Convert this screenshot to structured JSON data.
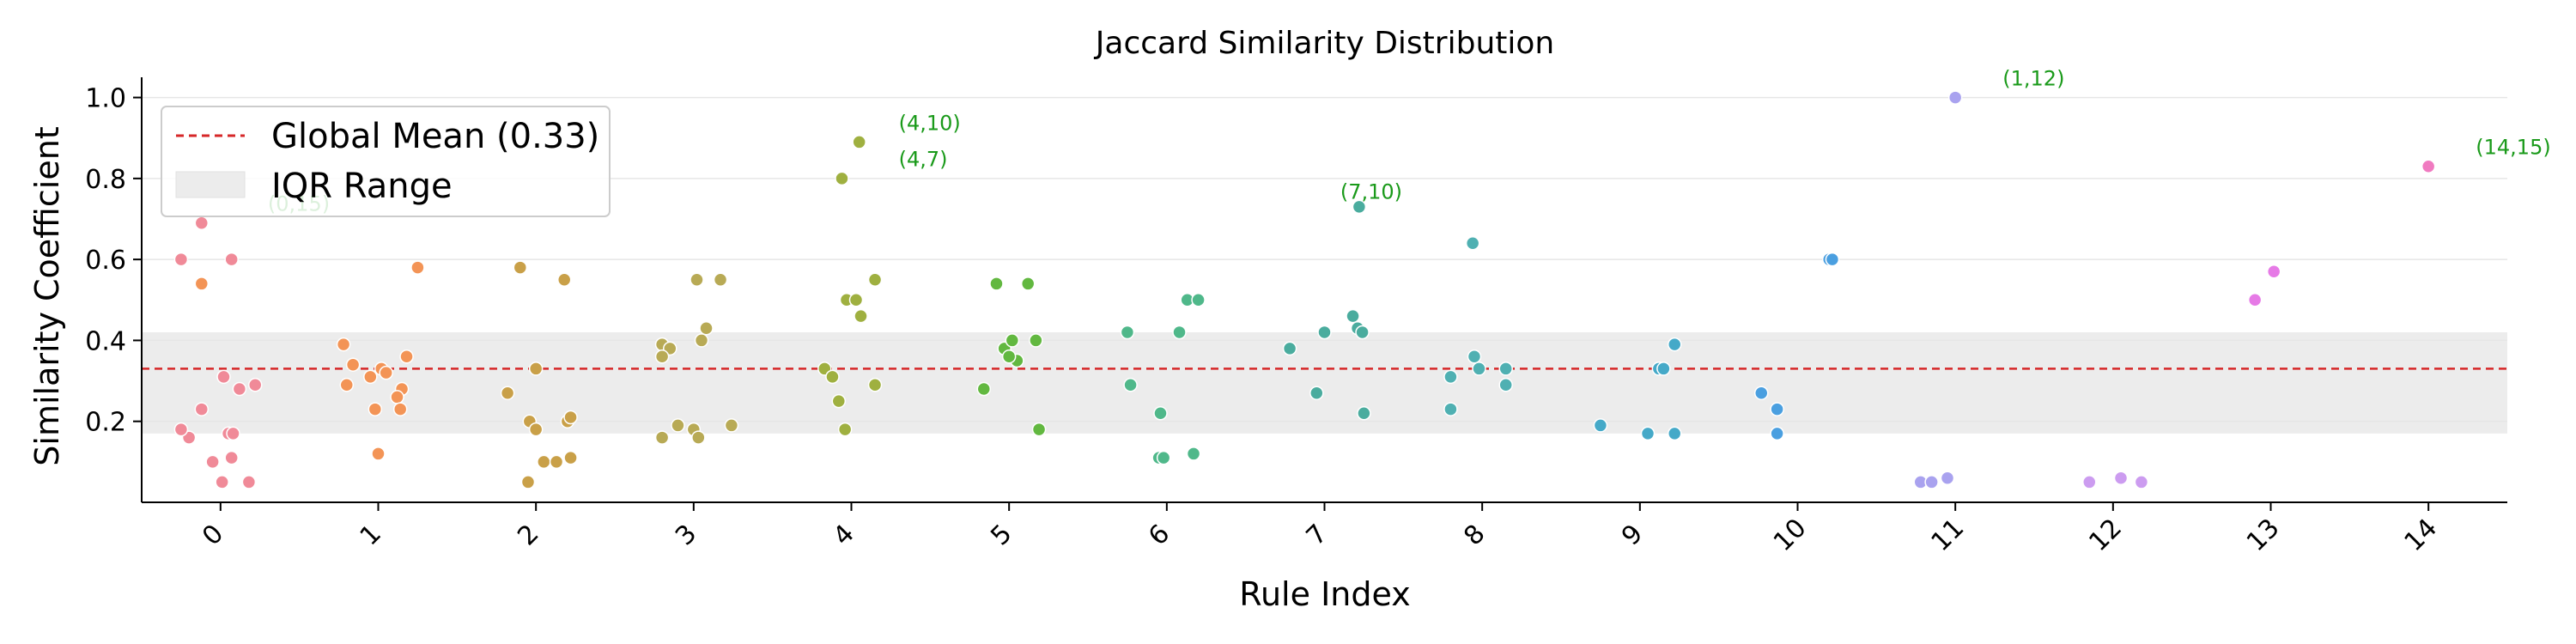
{
  "chart_data": {
    "type": "scatter",
    "title": "Jaccard Similarity Distribution",
    "xlabel": "Rule Index",
    "ylabel": "Similarity Coefficient",
    "xlim": [
      -0.5,
      14.5
    ],
    "ylim": [
      0.0,
      1.05
    ],
    "x_ticks": [
      "0",
      "1",
      "2",
      "3",
      "4",
      "5",
      "6",
      "7",
      "8",
      "9",
      "10",
      "11",
      "12",
      "13",
      "14"
    ],
    "y_ticks": [
      "0.2",
      "0.4",
      "0.6",
      "0.8",
      "1.0"
    ],
    "grid": "horizontal",
    "mean_line": {
      "value": 0.33,
      "color": "#d62728"
    },
    "iqr_band": {
      "lower": 0.17,
      "upper": 0.42,
      "color": "#ececec"
    },
    "legend": {
      "placement": "top-left",
      "entries": [
        {
          "label": "Global Mean (0.33)",
          "style": "dashed-line",
          "color": "#d62728"
        },
        {
          "label": "IQR Range",
          "style": "band",
          "color": "#ececec"
        }
      ]
    },
    "series": [
      {
        "category": 0,
        "color": "#f08a98",
        "points": [
          {
            "x": -0.25,
            "y": 0.6
          },
          {
            "x": -0.12,
            "y": 0.69
          },
          {
            "x": 0.07,
            "y": 0.6
          },
          {
            "x": -0.2,
            "y": 0.16
          },
          {
            "x": -0.25,
            "y": 0.18
          },
          {
            "x": -0.12,
            "y": 0.23
          },
          {
            "x": 0.02,
            "y": 0.31
          },
          {
            "x": 0.12,
            "y": 0.28
          },
          {
            "x": 0.22,
            "y": 0.29
          },
          {
            "x": 0.05,
            "y": 0.17
          },
          {
            "x": 0.08,
            "y": 0.17
          },
          {
            "x": -0.05,
            "y": 0.1
          },
          {
            "x": 0.07,
            "y": 0.11
          },
          {
            "x": 0.01,
            "y": 0.05
          },
          {
            "x": 0.18,
            "y": 0.05
          }
        ]
      },
      {
        "category": 1,
        "color": "#f39456",
        "points": [
          {
            "x": -0.12,
            "y": 0.54
          },
          {
            "x": 1.25,
            "y": 0.58
          },
          {
            "x": 0.78,
            "y": 0.39
          },
          {
            "x": 0.84,
            "y": 0.34
          },
          {
            "x": 0.95,
            "y": 0.31
          },
          {
            "x": 1.02,
            "y": 0.33
          },
          {
            "x": 1.05,
            "y": 0.32
          },
          {
            "x": 1.15,
            "y": 0.28
          },
          {
            "x": 1.18,
            "y": 0.36
          },
          {
            "x": 0.8,
            "y": 0.29
          },
          {
            "x": 0.98,
            "y": 0.23
          },
          {
            "x": 1.12,
            "y": 0.26
          },
          {
            "x": 1.14,
            "y": 0.23
          },
          {
            "x": 1.0,
            "y": 0.12
          }
        ]
      },
      {
        "category": 2,
        "color": "#c9a048",
        "points": [
          {
            "x": 1.9,
            "y": 0.58
          },
          {
            "x": 2.18,
            "y": 0.55
          },
          {
            "x": 2.0,
            "y": 0.33
          },
          {
            "x": 1.82,
            "y": 0.27
          },
          {
            "x": 1.96,
            "y": 0.2
          },
          {
            "x": 2.0,
            "y": 0.18
          },
          {
            "x": 2.2,
            "y": 0.2
          },
          {
            "x": 2.22,
            "y": 0.21
          },
          {
            "x": 2.05,
            "y": 0.1
          },
          {
            "x": 2.13,
            "y": 0.1
          },
          {
            "x": 2.22,
            "y": 0.11
          },
          {
            "x": 1.95,
            "y": 0.05
          }
        ]
      },
      {
        "category": 3,
        "color": "#b8aa55",
        "points": [
          {
            "x": 3.02,
            "y": 0.55
          },
          {
            "x": 3.17,
            "y": 0.55
          },
          {
            "x": 2.8,
            "y": 0.39
          },
          {
            "x": 2.85,
            "y": 0.38
          },
          {
            "x": 2.8,
            "y": 0.36
          },
          {
            "x": 3.08,
            "y": 0.43
          },
          {
            "x": 3.05,
            "y": 0.4
          },
          {
            "x": 2.9,
            "y": 0.19
          },
          {
            "x": 3.0,
            "y": 0.18
          },
          {
            "x": 3.03,
            "y": 0.16
          },
          {
            "x": 3.24,
            "y": 0.19
          },
          {
            "x": 2.8,
            "y": 0.16
          }
        ]
      },
      {
        "category": 4,
        "color": "#9fb040",
        "points": [
          {
            "x": 4.05,
            "y": 0.89
          },
          {
            "x": 3.94,
            "y": 0.8
          },
          {
            "x": 4.15,
            "y": 0.55
          },
          {
            "x": 3.97,
            "y": 0.5
          },
          {
            "x": 4.03,
            "y": 0.5
          },
          {
            "x": 4.06,
            "y": 0.46
          },
          {
            "x": 3.83,
            "y": 0.33
          },
          {
            "x": 3.88,
            "y": 0.31
          },
          {
            "x": 3.92,
            "y": 0.25
          },
          {
            "x": 4.15,
            "y": 0.29
          },
          {
            "x": 3.96,
            "y": 0.18
          }
        ]
      },
      {
        "category": 5,
        "color": "#62b840",
        "points": [
          {
            "x": 4.92,
            "y": 0.54
          },
          {
            "x": 5.12,
            "y": 0.54
          },
          {
            "x": 4.97,
            "y": 0.38
          },
          {
            "x": 5.02,
            "y": 0.4
          },
          {
            "x": 5.17,
            "y": 0.4
          },
          {
            "x": 5.05,
            "y": 0.35
          },
          {
            "x": 5.0,
            "y": 0.36
          },
          {
            "x": 4.84,
            "y": 0.28
          },
          {
            "x": 5.19,
            "y": 0.18
          }
        ]
      },
      {
        "category": 6,
        "color": "#4fb88a",
        "points": [
          {
            "x": 6.13,
            "y": 0.5
          },
          {
            "x": 6.2,
            "y": 0.5
          },
          {
            "x": 5.75,
            "y": 0.42
          },
          {
            "x": 6.08,
            "y": 0.42
          },
          {
            "x": 5.77,
            "y": 0.29
          },
          {
            "x": 5.96,
            "y": 0.22
          },
          {
            "x": 6.17,
            "y": 0.12
          },
          {
            "x": 5.95,
            "y": 0.11
          },
          {
            "x": 5.98,
            "y": 0.11
          }
        ]
      },
      {
        "category": 7,
        "color": "#4aac9e",
        "points": [
          {
            "x": 7.22,
            "y": 0.73
          },
          {
            "x": 7.18,
            "y": 0.46
          },
          {
            "x": 7.21,
            "y": 0.43
          },
          {
            "x": 7.24,
            "y": 0.42
          },
          {
            "x": 7.0,
            "y": 0.42
          },
          {
            "x": 6.78,
            "y": 0.38
          },
          {
            "x": 6.95,
            "y": 0.27
          },
          {
            "x": 7.25,
            "y": 0.22
          }
        ]
      },
      {
        "category": 8,
        "color": "#4fb0b2",
        "points": [
          {
            "x": 7.94,
            "y": 0.64
          },
          {
            "x": 7.95,
            "y": 0.36
          },
          {
            "x": 8.15,
            "y": 0.33
          },
          {
            "x": 7.8,
            "y": 0.31
          },
          {
            "x": 7.98,
            "y": 0.33
          },
          {
            "x": 8.15,
            "y": 0.29
          },
          {
            "x": 7.8,
            "y": 0.23
          }
        ]
      },
      {
        "category": 9,
        "color": "#45a9c8",
        "points": [
          {
            "x": 9.22,
            "y": 0.39
          },
          {
            "x": 9.12,
            "y": 0.33
          },
          {
            "x": 9.15,
            "y": 0.33
          },
          {
            "x": 8.75,
            "y": 0.19
          },
          {
            "x": 9.05,
            "y": 0.17
          },
          {
            "x": 9.22,
            "y": 0.17
          }
        ]
      },
      {
        "category": 10,
        "color": "#4a9fe0",
        "points": [
          {
            "x": 10.2,
            "y": 0.6
          },
          {
            "x": 10.22,
            "y": 0.6
          },
          {
            "x": 9.77,
            "y": 0.27
          },
          {
            "x": 9.87,
            "y": 0.23
          },
          {
            "x": 9.87,
            "y": 0.17
          }
        ]
      },
      {
        "category": 11,
        "color": "#a9a2ef",
        "points": [
          {
            "x": 11.0,
            "y": 1.0
          },
          {
            "x": 10.78,
            "y": 0.05
          },
          {
            "x": 10.85,
            "y": 0.05
          },
          {
            "x": 10.95,
            "y": 0.06
          }
        ]
      },
      {
        "category": 12,
        "color": "#cc9cf0",
        "points": [
          {
            "x": 11.85,
            "y": 0.05
          },
          {
            "x": 12.05,
            "y": 0.06
          },
          {
            "x": 12.18,
            "y": 0.05
          }
        ]
      },
      {
        "category": 13,
        "color": "#e67ae6",
        "points": [
          {
            "x": 12.9,
            "y": 0.5
          },
          {
            "x": 13.02,
            "y": 0.57
          }
        ]
      },
      {
        "category": 14,
        "color": "#f07ac0",
        "points": [
          {
            "x": 14.0,
            "y": 0.83
          }
        ]
      }
    ],
    "annotations": [
      {
        "text": "(0,15)",
        "x": 0.3,
        "y": 0.72
      },
      {
        "text": "(1,12)",
        "x": 11.3,
        "y": 1.03
      },
      {
        "text": "(4,10)",
        "x": 4.3,
        "y": 0.92
      },
      {
        "text": "(4,7)",
        "x": 4.3,
        "y": 0.83
      },
      {
        "text": "(7,10)",
        "x": 7.1,
        "y": 0.75
      },
      {
        "text": "(14,15)",
        "x": 14.3,
        "y": 0.86
      }
    ]
  }
}
